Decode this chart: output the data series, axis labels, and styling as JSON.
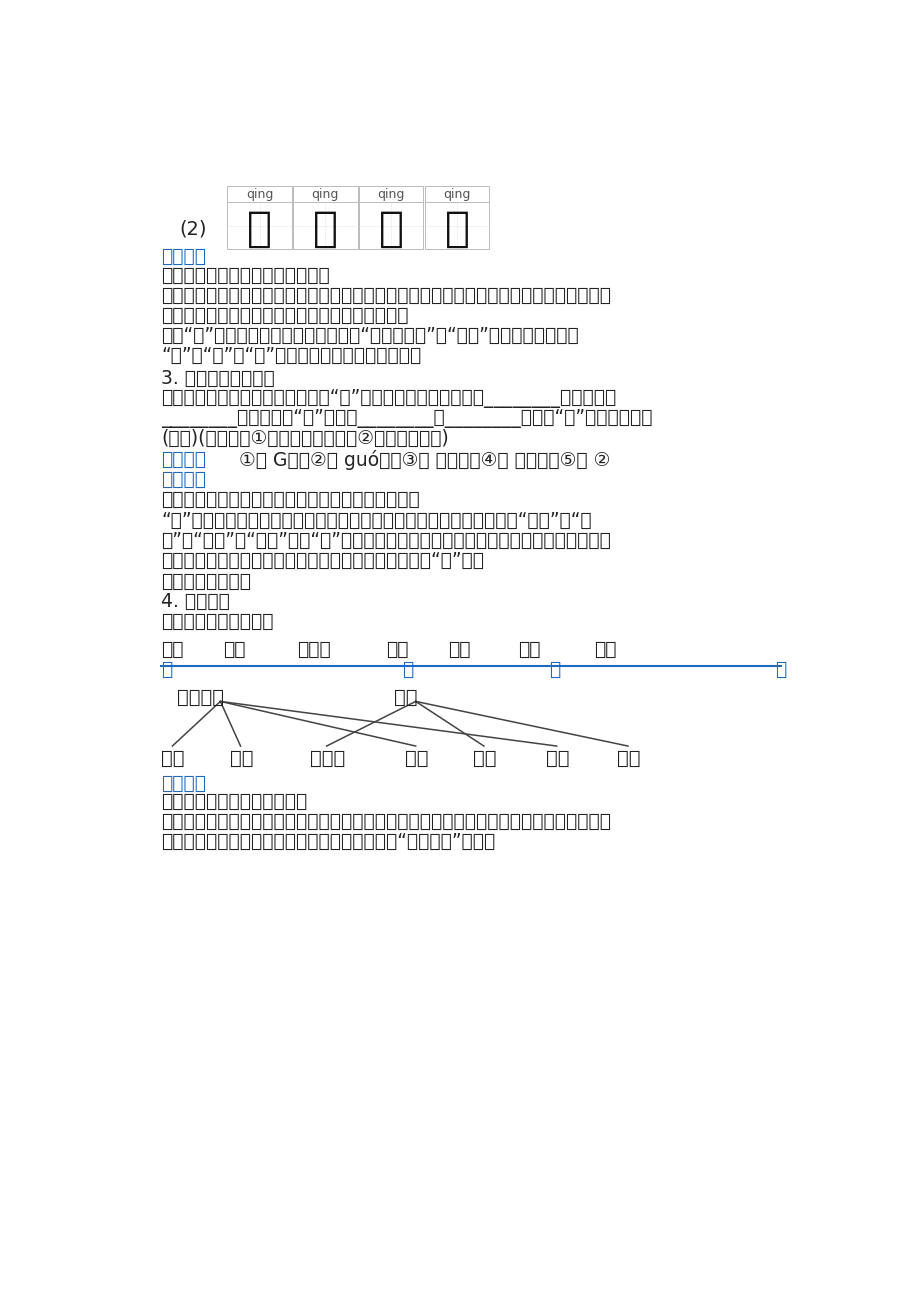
{
  "bg_color": "#ffffff",
  "blue_color": "#1a6bbf",
  "black_color": "#222222",
  "section1": {
    "label": "(2)",
    "pinyin": [
      "qing",
      "qing",
      "qing",
      "qing"
    ],
    "chars": [
      "晴",
      "清",
      "清",
      "青"
    ]
  },
  "jiexiLabel": "《解析》",
  "xiangjieLine1": "《详解》本题考查看拼音写汉字。",
  "xiangjieLine2": "解答本题，首先要读一读拼音，然后写出对应的词语，写完后再读一读，看看是否写正确，",
  "xiangjieLine3": "字要写在田字格中间，书写时要注意规范和美观。",
  "xiangjieLine4": "注意“清”可形容水洁净、清澈，因此是“清清的池塘”；“青蛙”是绳色的，因此是",
  "xiangjieLine5": "“青”。“清”和“青”的使用要分清，不要混淡了。",
  "q3Label": "3. 按要求，查字典。",
  "q3Line1": "我会用音序查字法查字典。我想查“国”这个字，要先查大写字母________，再查音节",
  "q3Line2": "________，我还会给“国”组词：________、________。书写“国”字时，要注意",
  "q3Line3": "(　　)(填序号：①先外后内再封口；②先中间后两边)",
  "answerContent": "①． G　　②． guó　　③． 国家　　④． 国旗　　⑤． ②",
  "xiangjieLine6": "《详解》考查音序、字母、音节、组词、书写笔顺。",
  "xiangjieLine7": "“国”字是一个非常常见的汉字，可以和很多词汇组合成新的词语，比如“国家”、“国",
  "xiangjieLine8": "际”、“祖国”、“故国”等。“国”字的书写要先中间后两边，再外后内再封口。这个笔画",
  "xiangjieLine9": "比较复杂，需要注意书写顺序和力度，才能写出好看的“国”字。",
  "readLine": "读一读，连一连。",
  "q4Label": "4. 分分类。",
  "q4Categories": "身体部位　　　　天气",
  "q4Words": [
    "鼻子",
    "嘴巴",
    "雨夹雪",
    "小腿",
    "暴雨",
    "手臂",
    "雷电"
  ],
  "xiangjieLine10": "《详解》本题考查词语归类。",
  "xiangjieLine11": "身体部位：和身体相关的部位。当我们做这个词语归类题时，我们看看给出的词语中，有哪",
  "xiangjieLine12": "些词语是我们自己身体上有的，就把那个词语与“身体部位”连线。"
}
